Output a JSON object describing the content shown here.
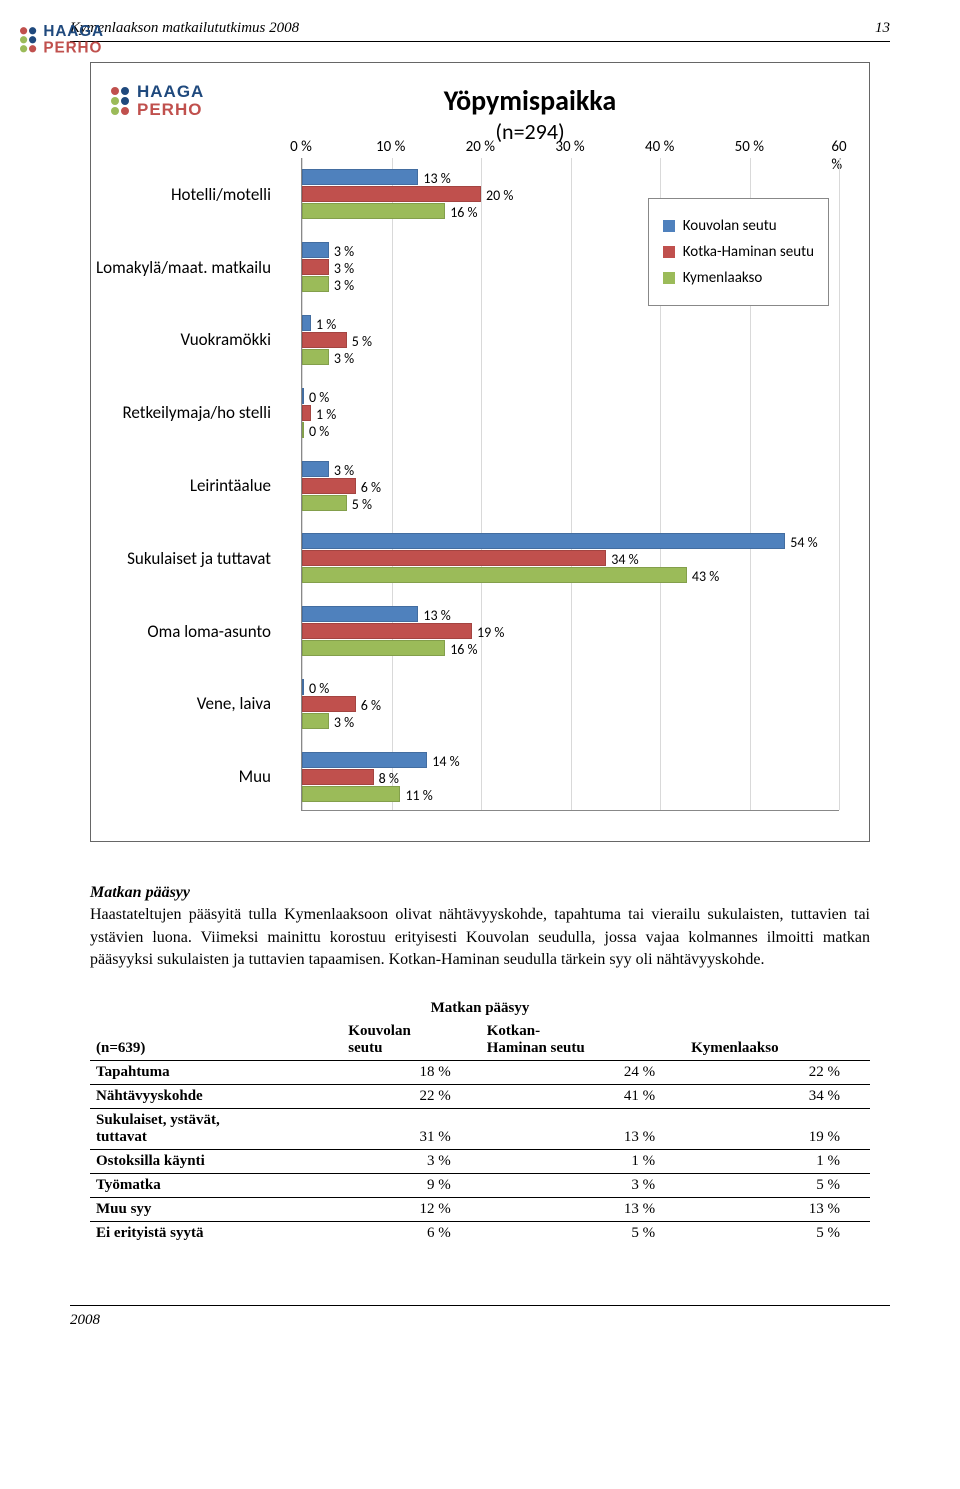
{
  "header": {
    "title": "Kymenlaakson matkailututkimus 2008",
    "page": "13"
  },
  "logo": {
    "line1": "HAAGA",
    "line2": "PERHO"
  },
  "chart": {
    "title": "Yöpymispaikka",
    "subtitle": "(n=294)",
    "xmin": 0,
    "xmax": 60,
    "xtick_step": 10,
    "ticks": [
      "0 %",
      "10 %",
      "20 %",
      "30 %",
      "40 %",
      "50 %",
      "60 %"
    ],
    "series_colors": [
      "#4f81bd",
      "#c0504d",
      "#9bbb59"
    ],
    "legend": [
      "Kouvolan seutu",
      "Kotka-Haminan seutu",
      "Kymenlaakso"
    ],
    "categories": [
      {
        "label": "Hotelli/motelli",
        "values": [
          13,
          20,
          16
        ]
      },
      {
        "label": "Lomakylä/maat. matkailu",
        "values": [
          3,
          3,
          3
        ]
      },
      {
        "label": "Vuokramökki",
        "values": [
          1,
          5,
          3
        ]
      },
      {
        "label": "Retkeilymaja/ho stelli",
        "values": [
          0,
          1,
          0
        ]
      },
      {
        "label": "Leirintäalue",
        "values": [
          3,
          6,
          5
        ]
      },
      {
        "label": "Sukulaiset ja tuttavat",
        "values": [
          54,
          34,
          43
        ]
      },
      {
        "label": "Oma loma-asunto",
        "values": [
          13,
          19,
          16
        ]
      },
      {
        "label": "Vene, laiva",
        "values": [
          0,
          6,
          3
        ]
      },
      {
        "label": "Muu",
        "values": [
          14,
          8,
          11
        ]
      }
    ]
  },
  "body": {
    "heading": "Matkan pääsyy",
    "paragraph": "Haastateltujen pääsyitä tulla Kymenlaaksoon olivat nähtävyyskohde, tapahtuma tai vierailu sukulaisten, tuttavien tai ystävien luona. Viimeksi mainittu korostuu erityisesti Kouvolan seudulla, jossa vajaa kolmannes ilmoitti matkan pääsyyksi sukulaisten ja tuttavien tapaamisen. Kotkan-Haminan seudulla tärkein syy oli nähtävyyskohde."
  },
  "table": {
    "title": "Matkan pääsyy",
    "n_label": "(n=639)",
    "columns": [
      "Kouvolan seutu",
      "Kotkan-Haminan seutu",
      "Kymenlaakso"
    ],
    "rows": [
      {
        "label": "Tapahtuma",
        "values": [
          "18 %",
          "24 %",
          "22 %"
        ],
        "multi": false
      },
      {
        "label": "Nähtävyyskohde",
        "values": [
          "22 %",
          "41 %",
          "34 %"
        ],
        "multi": false
      },
      {
        "label": "Sukulaiset, ystävät, tuttavat",
        "values": [
          "31 %",
          "13 %",
          "19 %"
        ],
        "multi": true
      },
      {
        "label": "Ostoksilla käynti",
        "values": [
          "3 %",
          "1 %",
          "1 %"
        ],
        "multi": false
      },
      {
        "label": "Työmatka",
        "values": [
          "9 %",
          "3 %",
          "5 %"
        ],
        "multi": false
      },
      {
        "label": "Muu syy",
        "values": [
          "12 %",
          "13 %",
          "13 %"
        ],
        "multi": false
      },
      {
        "label": "Ei erityistä syytä",
        "values": [
          "6 %",
          "5 %",
          "5 %"
        ],
        "multi": false
      }
    ]
  },
  "footer": {
    "year": "2008"
  }
}
